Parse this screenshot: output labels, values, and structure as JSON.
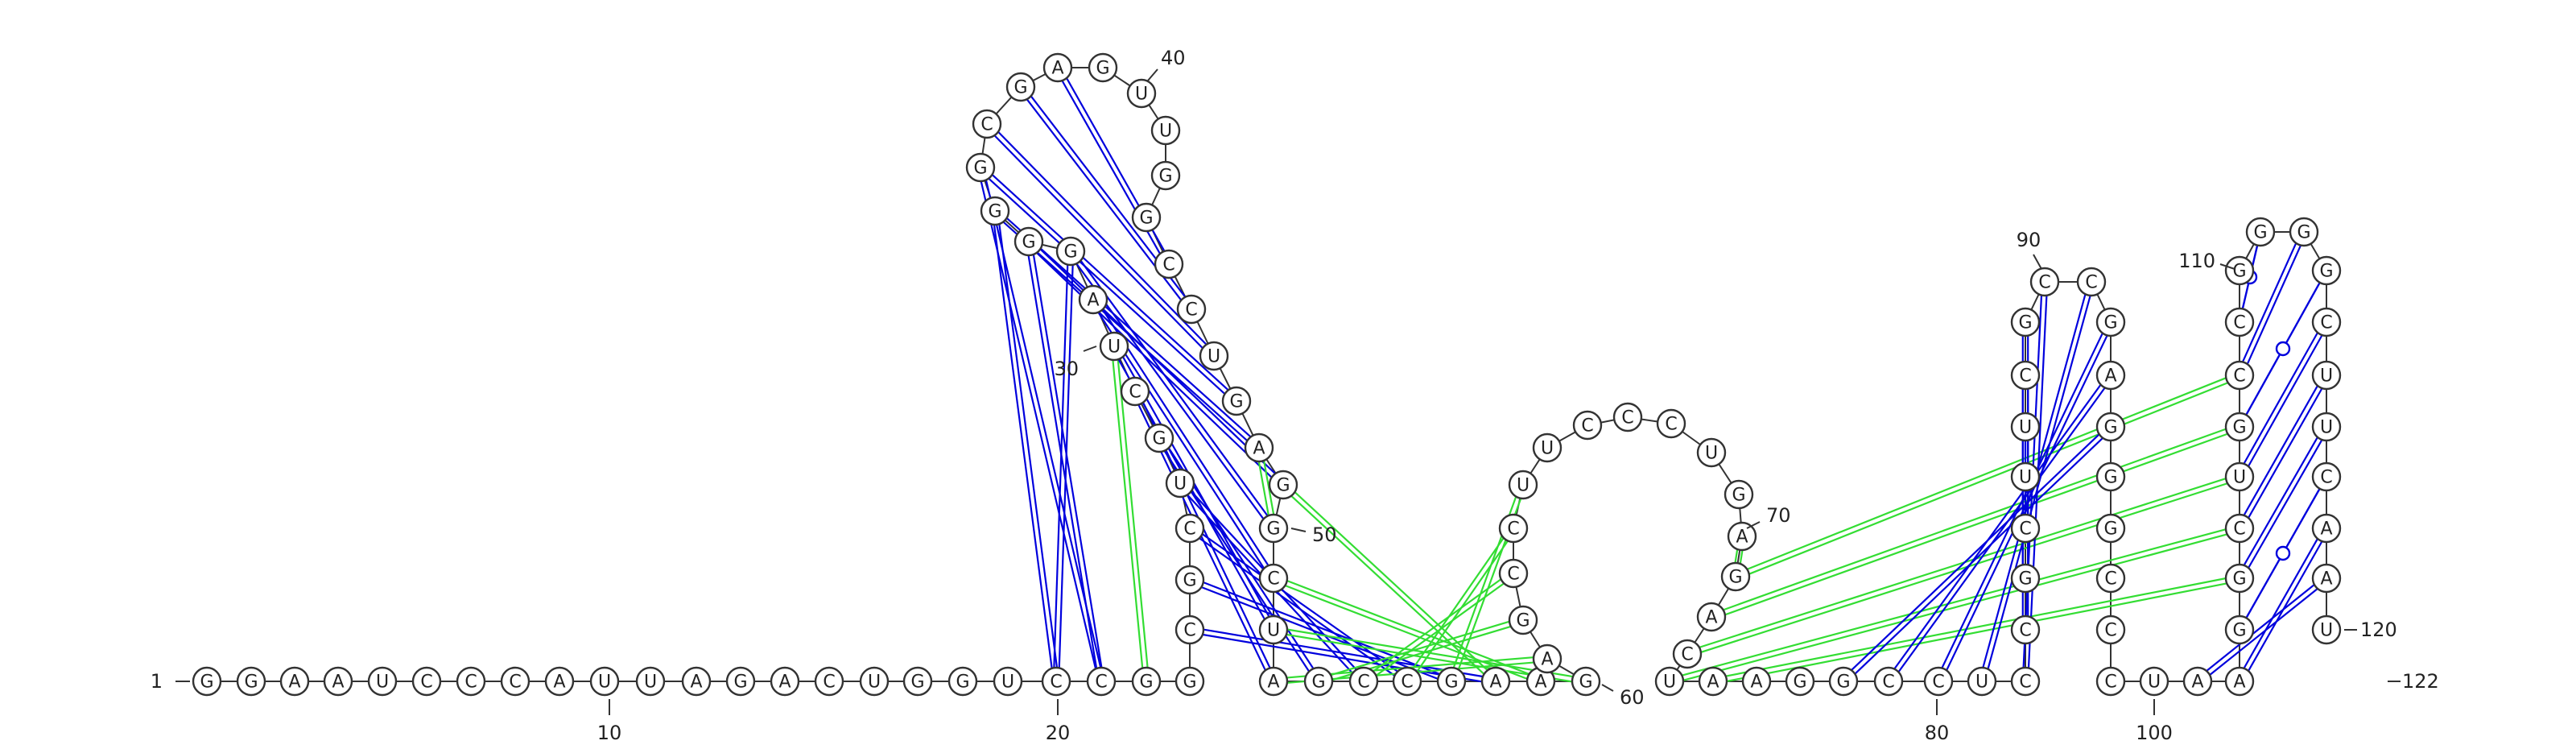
{
  "colors": {
    "canonical": "#0000dd",
    "noncanonical": "#33dd33",
    "backbone": "#333333",
    "fill": "#ffffff"
  },
  "sequence": "GGAAUCCCAUUAGACUGGUCCGGCGCUGCUAGGGGCGAGUUGGCCUGAGGCUAGCCGAAGAGCCUUCCCUGAGACUAAGGCCUCCGCUUCGCCGAGGGCCCUAAGGCUGCCGGGGCUUCAAUCC",
  "sequence_length": 122,
  "index_labels": [
    "1",
    "10",
    "20",
    "30",
    "40",
    "50",
    "60",
    "70",
    "80",
    "90",
    "100",
    "110",
    "120",
    "122"
  ],
  "pairs": [
    {
      "i": 20,
      "j": 32,
      "type": "canonical"
    },
    {
      "i": 21,
      "j": 33,
      "type": "canonical"
    },
    {
      "i": 20,
      "j": 34,
      "type": "canonical"
    },
    {
      "i": 21,
      "j": 35,
      "type": "canonical"
    },
    {
      "i": 22,
      "j": 30,
      "type": "noncanonical"
    },
    {
      "i": 24,
      "j": 58,
      "type": "canonical"
    },
    {
      "i": 25,
      "j": 57,
      "type": "canonical"
    },
    {
      "i": 26,
      "j": 56,
      "type": "canonical"
    },
    {
      "i": 27,
      "j": 55,
      "type": "canonical"
    },
    {
      "i": 28,
      "j": 54,
      "type": "canonical"
    },
    {
      "i": 29,
      "j": 53,
      "type": "canonical"
    },
    {
      "i": 30,
      "j": 52,
      "type": "canonical"
    },
    {
      "i": 31,
      "j": 51,
      "type": "canonical"
    },
    {
      "i": 32,
      "j": 50,
      "type": "canonical"
    },
    {
      "i": 33,
      "j": 49,
      "type": "canonical"
    },
    {
      "i": 34,
      "j": 48,
      "type": "canonical"
    },
    {
      "i": 35,
      "j": 47,
      "type": "canonical"
    },
    {
      "i": 36,
      "j": 46,
      "type": "canonical"
    },
    {
      "i": 37,
      "j": 45,
      "type": "canonical"
    },
    {
      "i": 38,
      "j": 44,
      "type": "canonical"
    },
    {
      "i": 48,
      "j": 50,
      "type": "noncanonical"
    },
    {
      "i": 49,
      "j": 58,
      "type": "noncanonical"
    },
    {
      "i": 51,
      "j": 59,
      "type": "noncanonical"
    },
    {
      "i": 52,
      "j": 60,
      "type": "noncanonical"
    },
    {
      "i": 53,
      "j": 61,
      "type": "noncanonical"
    },
    {
      "i": 54,
      "j": 62,
      "type": "noncanonical"
    },
    {
      "i": 55,
      "j": 63,
      "type": "noncanonical"
    },
    {
      "i": 56,
      "j": 64,
      "type": "noncanonical"
    },
    {
      "i": 57,
      "j": 65,
      "type": "noncanonical"
    },
    {
      "i": 72,
      "j": 73,
      "type": "noncanonical"
    },
    {
      "i": 73,
      "j": 110,
      "type": "noncanonical"
    },
    {
      "i": 74,
      "j": 109,
      "type": "noncanonical"
    },
    {
      "i": 75,
      "j": 108,
      "type": "noncanonical"
    },
    {
      "i": 76,
      "j": 107,
      "type": "noncanonical"
    },
    {
      "i": 77,
      "j": 106,
      "type": "noncanonical"
    },
    {
      "i": 80,
      "j": 96,
      "type": "canonical"
    },
    {
      "i": 81,
      "j": 95,
      "type": "canonical"
    },
    {
      "i": 82,
      "j": 94,
      "type": "canonical"
    },
    {
      "i": 83,
      "j": 93,
      "type": "canonical"
    },
    {
      "i": 84,
      "j": 92,
      "type": "canonical"
    },
    {
      "i": 85,
      "j": 91,
      "type": "canonical"
    },
    {
      "i": 86,
      "j": 90,
      "type": "canonical"
    },
    {
      "i": 87,
      "j": 89,
      "type": "wobble"
    },
    {
      "i": 103,
      "j": 121,
      "type": "canonical"
    },
    {
      "i": 104,
      "j": 120,
      "type": "canonical"
    },
    {
      "i": 105,
      "j": 119,
      "type": "wobble"
    },
    {
      "i": 106,
      "j": 118,
      "type": "canonical"
    },
    {
      "i": 107,
      "j": 117,
      "type": "canonical"
    },
    {
      "i": 108,
      "j": 116,
      "type": "canonical"
    },
    {
      "i": 109,
      "j": 115,
      "type": "wobble"
    },
    {
      "i": 110,
      "j": 114,
      "type": "canonical"
    },
    {
      "i": 111,
      "j": 113,
      "type": "wobble"
    }
  ]
}
